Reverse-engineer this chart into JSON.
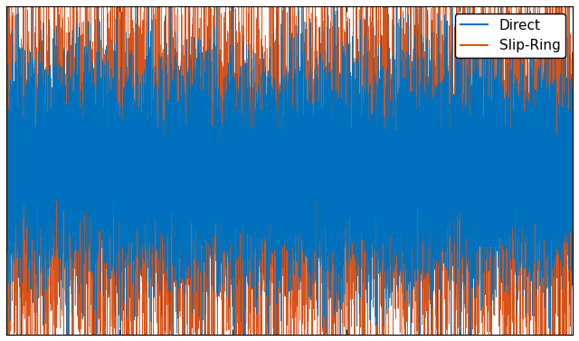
{
  "title": "",
  "direct_color": "#0072BD",
  "slipring_color": "#D95319",
  "legend_labels": [
    "Direct",
    "Slip-Ring"
  ],
  "n_points": 10000,
  "seed_direct": 42,
  "seed_slipring": 7,
  "direct_amplitude": 0.35,
  "slipring_amplitude": 0.55,
  "xlabel": "",
  "ylabel": "",
  "background_color": "#FFFFFF",
  "figure_background": "#FFFFFF",
  "linewidth": 0.4,
  "ylim": [
    -1.0,
    1.0
  ],
  "xlim": [
    0,
    10000
  ],
  "grid_color": "#CCCCCC",
  "legend_fontsize": 11,
  "legend_loc": "upper right"
}
